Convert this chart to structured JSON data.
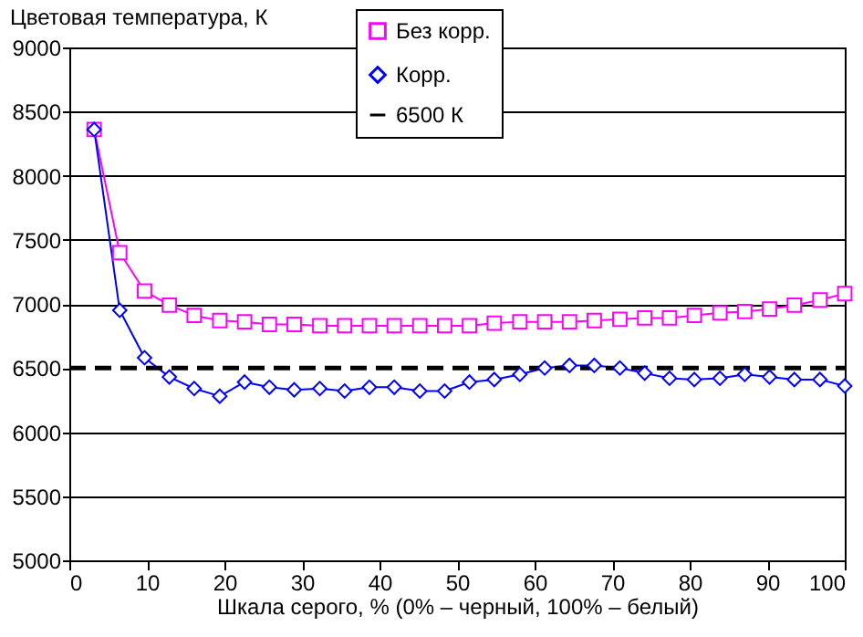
{
  "chart_data": {
    "type": "line",
    "ylabel": "Цветовая температура, К",
    "xlabel": "Шкала серого, % (0% – черный, 100% – белый)",
    "x": [
      3.2,
      6.5,
      9.7,
      12.9,
      16.1,
      19.4,
      22.6,
      25.8,
      29,
      32.3,
      35.5,
      38.7,
      41.9,
      45.2,
      48.4,
      51.6,
      54.8,
      58.1,
      61.3,
      64.5,
      67.7,
      71,
      74.2,
      77.4,
      80.6,
      83.9,
      87.1,
      90.3,
      93.5,
      96.8,
      100
    ],
    "series": [
      {
        "name": "Без корр.",
        "color": "#ff00ff",
        "marker": "square",
        "values": [
          8360,
          7400,
          7100,
          6990,
          6910,
          6870,
          6860,
          6840,
          6840,
          6830,
          6830,
          6830,
          6830,
          6830,
          6830,
          6830,
          6850,
          6860,
          6860,
          6860,
          6870,
          6880,
          6890,
          6890,
          6910,
          6930,
          6940,
          6960,
          6990,
          7030,
          7080
        ]
      },
      {
        "name": "Корр.",
        "color": "#0000ff",
        "marker": "diamond",
        "values": [
          8360,
          6950,
          6580,
          6430,
          6340,
          6280,
          6390,
          6350,
          6330,
          6340,
          6320,
          6350,
          6350,
          6320,
          6320,
          6390,
          6410,
          6450,
          6500,
          6520,
          6520,
          6500,
          6460,
          6420,
          6410,
          6420,
          6450,
          6430,
          6410,
          6410,
          6360
        ]
      },
      {
        "name": "6500 К",
        "color": "#000000",
        "marker": "none",
        "line_style": "dashed",
        "x": [
          0,
          100
        ],
        "values": [
          6500,
          6500
        ]
      }
    ],
    "xlim": [
      0,
      100
    ],
    "xticks": [
      0,
      10,
      20,
      30,
      40,
      50,
      60,
      70,
      80,
      90,
      100
    ],
    "ylim": [
      5000,
      9000
    ],
    "yticks": [
      5000,
      5500,
      6000,
      6500,
      7000,
      7500,
      8000,
      8500,
      9000
    ],
    "grid": "y",
    "legend": "top right"
  }
}
